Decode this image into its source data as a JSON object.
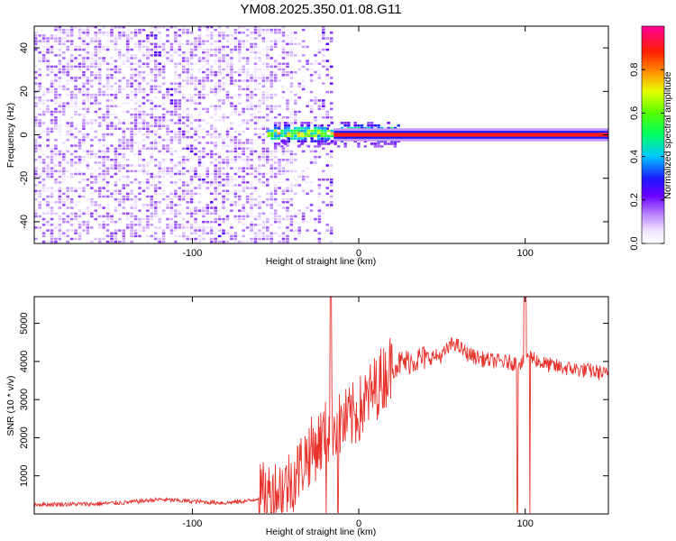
{
  "figure_title": "YM08.2025.350.01.08.G11",
  "colors": {
    "snr_line": "#e8322c",
    "axis": "#000000",
    "background": "#ffffff"
  },
  "chart_data": [
    {
      "type": "heatmap",
      "title": "YM08.2025.350.01.08.G11",
      "xlabel": "Height of straight line (km)",
      "ylabel": "Frequency (Hz)",
      "xlim": [
        -195,
        150
      ],
      "ylim": [
        -50,
        50
      ],
      "x_ticks": [
        -100,
        0,
        100
      ],
      "y_ticks": [
        -40,
        -20,
        0,
        20,
        40
      ],
      "colorbar": {
        "label": "Normalized spectral amplitude",
        "range": [
          0,
          1
        ],
        "ticks": [
          "0.0",
          "0.2",
          "0.4",
          "0.6",
          "0.8"
        ],
        "tick_values": [
          0,
          0.2,
          0.4,
          0.6,
          0.8
        ],
        "colormap": "white-purple-blue-cyan-green-yellow-orange-red-magenta"
      },
      "features": [
        {
          "description": "scattered low-amplitude noise",
          "x_range": [
            -195,
            -15
          ],
          "f_range": [
            -50,
            50
          ],
          "amplitude": 0.1
        },
        {
          "description": "carrier line",
          "x_range": [
            -15,
            150
          ],
          "f": 0,
          "amplitude": 0.9
        },
        {
          "description": "carrier broadening",
          "x_range": [
            -55,
            25
          ],
          "f_range": [
            -6,
            6
          ],
          "amplitude": 0.45
        }
      ]
    },
    {
      "type": "line",
      "xlabel": "Height of straight line (km)",
      "ylabel": "SNR (10 * v/v)",
      "xlim": [
        -195,
        150
      ],
      "ylim": [
        0,
        5700
      ],
      "x_ticks": [
        -100,
        0,
        100
      ],
      "y_ticks": [
        1000,
        2000,
        3000,
        4000,
        5000
      ],
      "series": [
        {
          "x": [
            -195,
            -160,
            -140,
            -120,
            -100,
            -80,
            -65,
            -55,
            -45,
            -38,
            -32,
            -25,
            -20,
            -17,
            -12,
            -5,
            0,
            5,
            10,
            15,
            20,
            30,
            40,
            50,
            57,
            65,
            75,
            85,
            95,
            100,
            103,
            110,
            120,
            130,
            140,
            150
          ],
          "y": [
            250,
            260,
            300,
            380,
            330,
            290,
            350,
            500,
            700,
            1000,
            1500,
            1800,
            2100,
            5650,
            2300,
            2500,
            2700,
            3000,
            3300,
            3600,
            3900,
            4000,
            4100,
            4150,
            4500,
            4200,
            4050,
            4000,
            3950,
            5600,
            4150,
            3950,
            3850,
            3800,
            3750,
            3650
          ]
        }
      ]
    }
  ]
}
